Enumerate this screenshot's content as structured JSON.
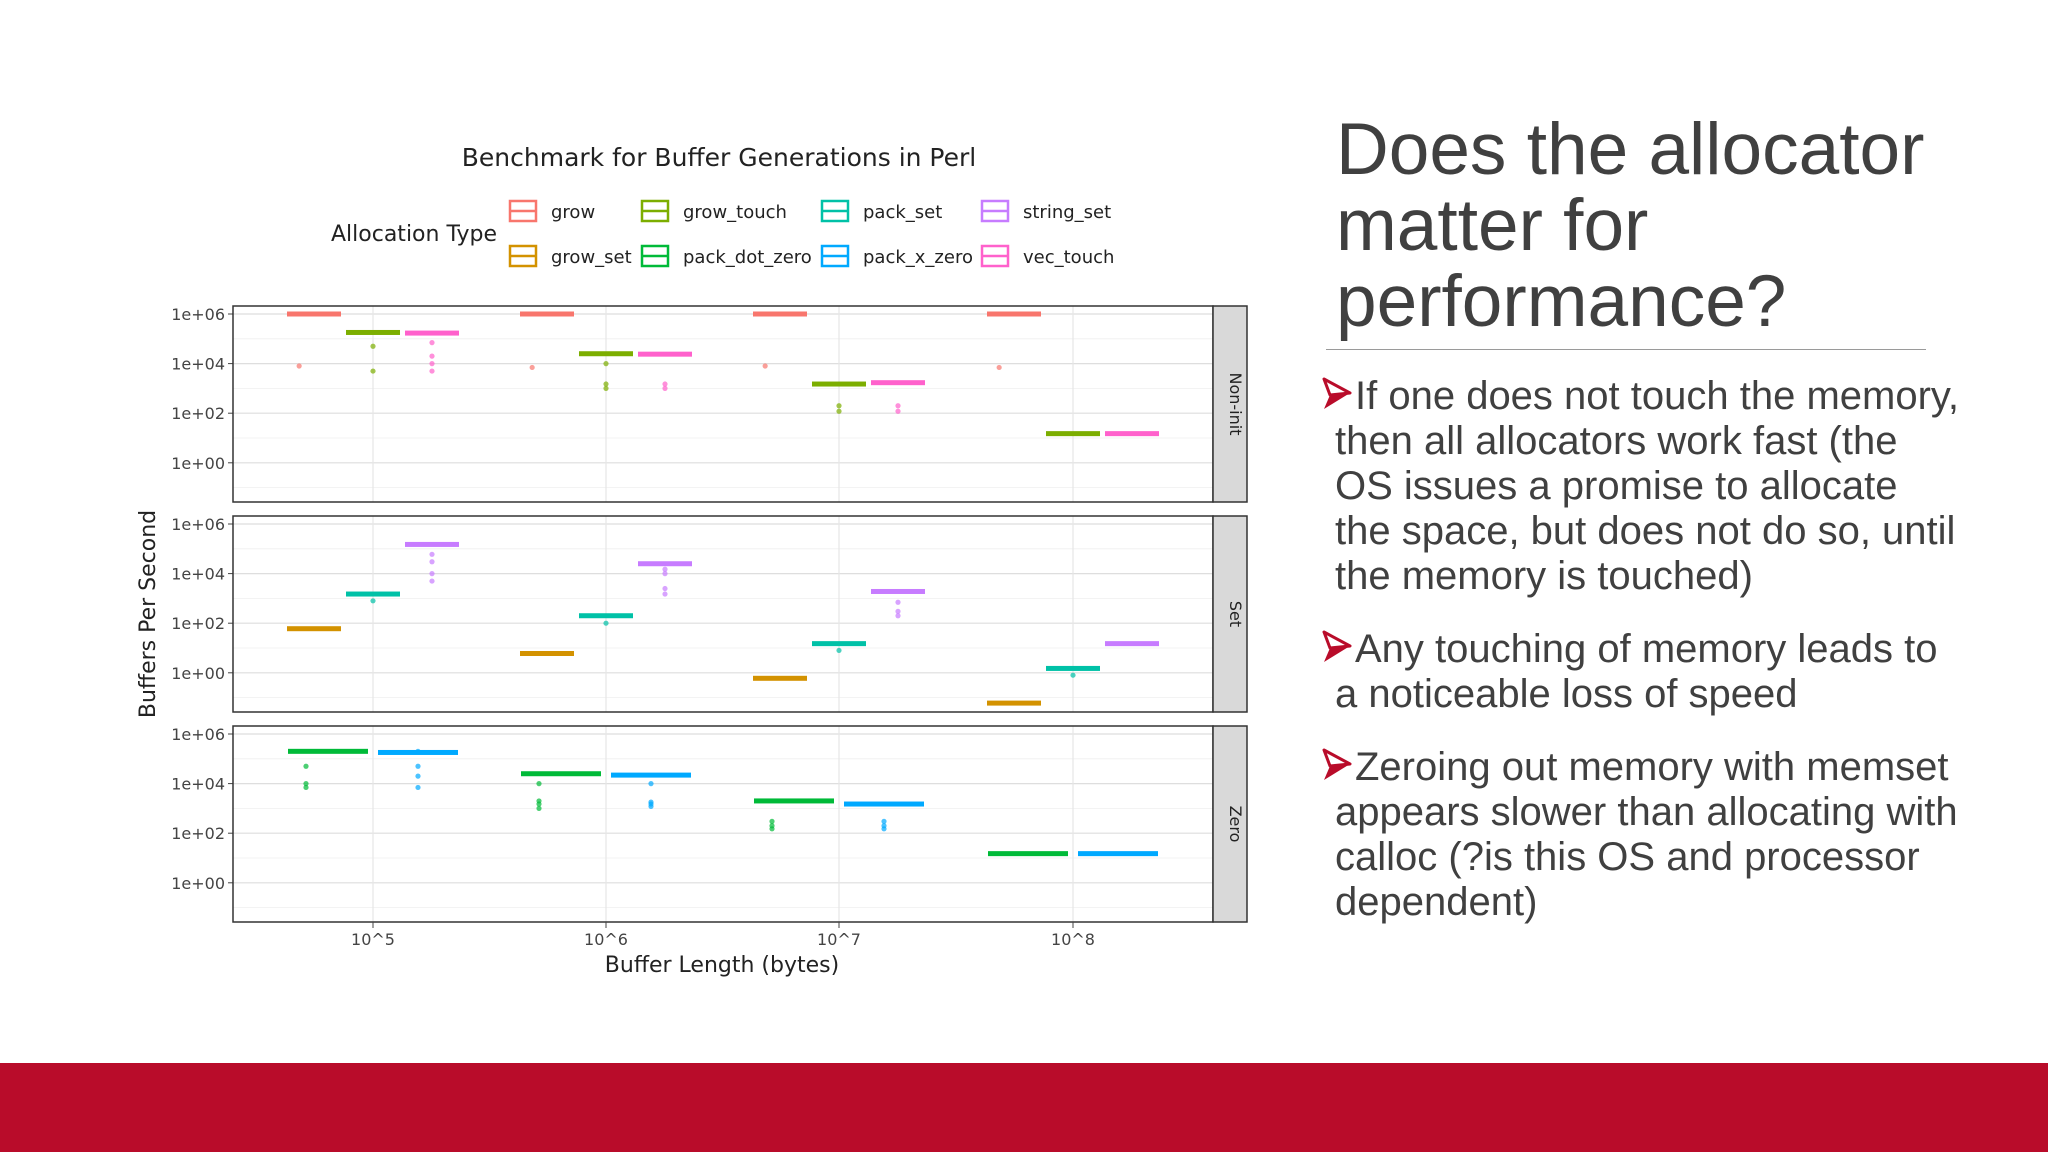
{
  "slide": {
    "title": "Does the allocator matter for performance?",
    "bullets": [
      "If one does not touch the memory, then all allocators work fast (the OS issues a promise to allocate the space, but does not do so, until the memory is touched)",
      "Any touching of memory leads to a noticeable loss of speed",
      "Zeroing out memory with memset appears slower than allocating with calloc (?is this OS and processor dependent)"
    ],
    "accent_color": "#b90c2a",
    "bullet_icon": "arrow-bullet-icon"
  },
  "chart_data": {
    "type": "boxplot",
    "title": "Benchmark for Buffer Generations in Perl",
    "legend_title": "Allocation Type",
    "legend_position": "top",
    "xlabel": "Buffer Length (bytes)",
    "ylabel": "Buffers Per Second",
    "x_categories": [
      "10^5",
      "10^6",
      "10^7",
      "10^8"
    ],
    "y_scale": "log10",
    "y_ticks": [
      "1e+00",
      "1e+02",
      "1e+04",
      "1e+06"
    ],
    "ylim": [
      0.01,
      2000000
    ],
    "grid": true,
    "allocation_types": [
      {
        "name": "grow",
        "color": "#f8766d"
      },
      {
        "name": "grow_set",
        "color": "#d39200"
      },
      {
        "name": "grow_touch",
        "color": "#7cae00"
      },
      {
        "name": "pack_dot_zero",
        "color": "#00ba38"
      },
      {
        "name": "pack_set",
        "color": "#00c1a7"
      },
      {
        "name": "pack_x_zero",
        "color": "#00a9ff"
      },
      {
        "name": "string_set",
        "color": "#c77cff"
      },
      {
        "name": "vec_touch",
        "color": "#ff61cc"
      }
    ],
    "facets": [
      {
        "label": "Non-init",
        "series": [
          {
            "name": "grow",
            "x": [
              "10^5",
              "10^6",
              "10^7",
              "10^8"
            ],
            "median": [
              1000000,
              1000000,
              1000000,
              1000000
            ],
            "outliers": [
              [
                8000
              ],
              [
                7000
              ],
              [
                8000
              ],
              [
                7000
              ]
            ]
          },
          {
            "name": "grow_touch",
            "x": [
              "10^5",
              "10^6",
              "10^7",
              "10^8"
            ],
            "median": [
              180000,
              25000,
              1500,
              15
            ],
            "outliers": [
              [
                50000,
                5000
              ],
              [
                10000,
                1500,
                1000
              ],
              [
                200,
                120
              ],
              []
            ]
          },
          {
            "name": "vec_touch",
            "x": [
              "10^5",
              "10^6",
              "10^7",
              "10^8"
            ],
            "median": [
              170000,
              24000,
              1700,
              15
            ],
            "outliers": [
              [
                70000,
                20000,
                10000,
                5000
              ],
              [
                1500,
                1000
              ],
              [
                200,
                120
              ],
              []
            ]
          }
        ]
      },
      {
        "label": "Set",
        "series": [
          {
            "name": "grow_set",
            "x": [
              "10^5",
              "10^6",
              "10^7",
              "10^8"
            ],
            "median": [
              60,
              6,
              0.6,
              0.06
            ],
            "outliers": [
              [],
              [],
              [],
              []
            ]
          },
          {
            "name": "pack_set",
            "x": [
              "10^5",
              "10^6",
              "10^7",
              "10^8"
            ],
            "median": [
              1500,
              200,
              15,
              1.5
            ],
            "outliers": [
              [
                800
              ],
              [
                100
              ],
              [
                8
              ],
              [
                0.8
              ]
            ]
          },
          {
            "name": "string_set",
            "x": [
              "10^5",
              "10^6",
              "10^7",
              "10^8"
            ],
            "median": [
              150000,
              25000,
              1900,
              15
            ],
            "outliers": [
              [
                60000,
                30000,
                10000,
                5000
              ],
              [
                15000,
                10000,
                2500,
                1500
              ],
              [
                700,
                300,
                200
              ],
              []
            ]
          }
        ]
      },
      {
        "label": "Zero",
        "series": [
          {
            "name": "pack_dot_zero",
            "x": [
              "10^5",
              "10^6",
              "10^7",
              "10^8"
            ],
            "median": [
              200000,
              25000,
              2000,
              15
            ],
            "outliers": [
              [
                50000,
                10000,
                7000
              ],
              [
                10000,
                2000,
                1500,
                1000
              ],
              [
                300,
                200,
                150
              ],
              []
            ]
          },
          {
            "name": "pack_x_zero",
            "x": [
              "10^5",
              "10^6",
              "10^7",
              "10^8"
            ],
            "median": [
              180000,
              22000,
              1500,
              15
            ],
            "outliers": [
              [
                200000,
                50000,
                20000,
                7000
              ],
              [
                10000,
                1800,
                1500,
                1200
              ],
              [
                300,
                200,
                150
              ],
              []
            ]
          }
        ]
      }
    ]
  }
}
